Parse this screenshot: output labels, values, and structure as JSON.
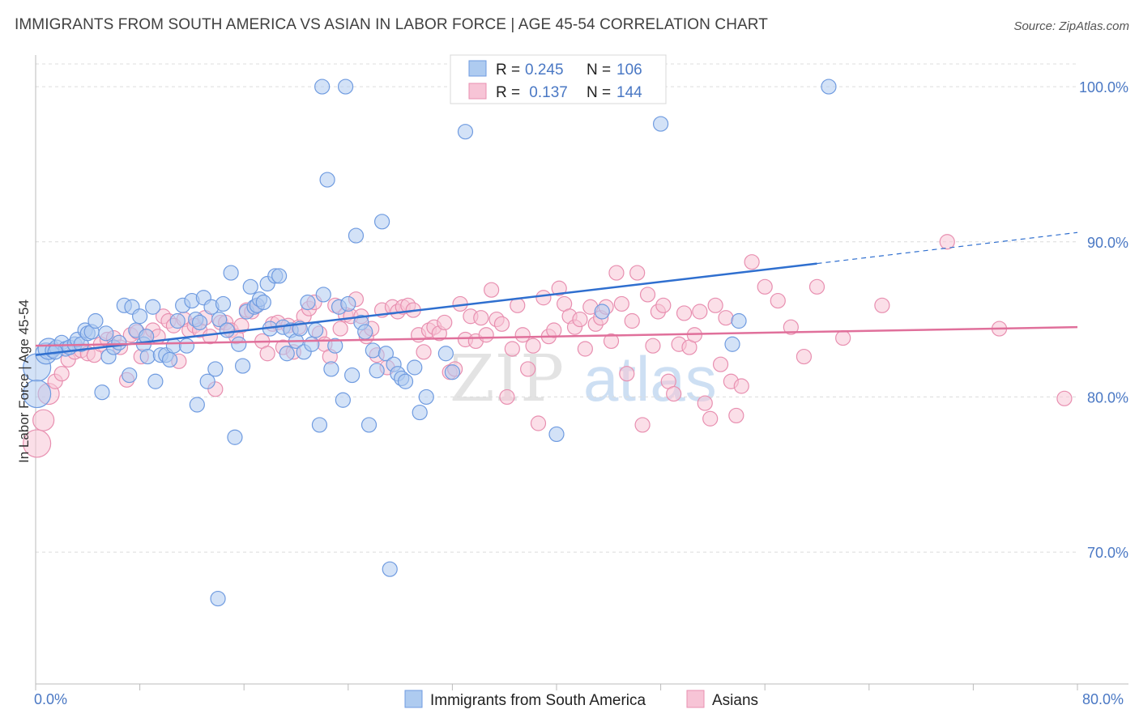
{
  "header": {
    "title": "IMMIGRANTS FROM SOUTH AMERICA VS ASIAN IN LABOR FORCE | AGE 45-54 CORRELATION CHART",
    "source": "Source: ZipAtlas.com"
  },
  "watermark": {
    "part1": "ZIP",
    "part2": "atlas"
  },
  "legend": {
    "rows": [
      {
        "r_label": "R =",
        "r_value": "0.245",
        "n_label": "N =",
        "n_value": "106"
      },
      {
        "r_label": "R =",
        "r_value": " 0.137",
        "n_label": "N =",
        "n_value": "144"
      }
    ]
  },
  "bottom_legend": [
    "Immigrants from South America",
    "Asians"
  ],
  "chart_data": {
    "type": "scatter",
    "title": "IMMIGRANTS FROM SOUTH AMERICA VS ASIAN IN LABOR FORCE | AGE 45-54 CORRELATION CHART",
    "ylabel": "In Labor Force | Age 45-54",
    "xlabel": "",
    "xlim": [
      0,
      80
    ],
    "ylim": [
      61.5,
      103.5
    ],
    "x_tick_labels": [
      "0.0%",
      "80.0%"
    ],
    "y_ticks": [
      {
        "value": 100,
        "label": "100.0%"
      },
      {
        "value": 90,
        "label": "90.0%"
      },
      {
        "value": 80,
        "label": "80.0%"
      },
      {
        "value": 70,
        "label": "70.0%"
      }
    ],
    "grid": "horizontal dashed",
    "colors": {
      "blue_fill": "#aecbf0",
      "blue_stroke": "#6f9be0",
      "blue_line": "#2f6fcf",
      "pink_fill": "#f7c4d6",
      "pink_stroke": "#e88fb0",
      "pink_line": "#e0709b"
    },
    "series": [
      {
        "name": "Immigrants from South America",
        "R": 0.245,
        "N": 106,
        "trend": {
          "x0": 0,
          "y0": 82.7,
          "x1": 60,
          "y1": 88.6,
          "dash_to_x": 80,
          "dash_to_y": 90.6
        },
        "points": [
          [
            0.1,
            81.9
          ],
          [
            0.1,
            80.2
          ],
          [
            0.8,
            82.8
          ],
          [
            1.0,
            83.1
          ],
          [
            1.3,
            83.0
          ],
          [
            1.6,
            83.2
          ],
          [
            2.0,
            83.5
          ],
          [
            2.3,
            83.1
          ],
          [
            2.6,
            83.2
          ],
          [
            3.0,
            83.4
          ],
          [
            3.2,
            83.7
          ],
          [
            3.5,
            83.4
          ],
          [
            3.8,
            84.3
          ],
          [
            4.0,
            84.1
          ],
          [
            4.3,
            84.2
          ],
          [
            4.6,
            84.9
          ],
          [
            5.1,
            80.3
          ],
          [
            5.4,
            84.1
          ],
          [
            5.6,
            82.6
          ],
          [
            6.0,
            83.2
          ],
          [
            6.4,
            83.5
          ],
          [
            6.8,
            85.9
          ],
          [
            7.2,
            81.4
          ],
          [
            7.4,
            85.8
          ],
          [
            7.7,
            84.3
          ],
          [
            8.0,
            85.2
          ],
          [
            8.3,
            83.4
          ],
          [
            8.6,
            82.6
          ],
          [
            9.0,
            85.8
          ],
          [
            9.2,
            81.0
          ],
          [
            9.6,
            82.7
          ],
          [
            10.0,
            82.7
          ],
          [
            10.3,
            82.4
          ],
          [
            10.6,
            83.3
          ],
          [
            10.9,
            84.9
          ],
          [
            11.3,
            85.9
          ],
          [
            11.6,
            83.3
          ],
          [
            12.0,
            86.2
          ],
          [
            12.3,
            85.0
          ],
          [
            12.6,
            84.8
          ],
          [
            12.9,
            86.4
          ],
          [
            13.2,
            81.0
          ],
          [
            13.5,
            85.8
          ],
          [
            13.8,
            81.8
          ],
          [
            14.1,
            85.0
          ],
          [
            14.4,
            86.0
          ],
          [
            14.7,
            84.3
          ],
          [
            15.0,
            88.0
          ],
          [
            15.3,
            77.4
          ],
          [
            15.6,
            83.4
          ],
          [
            15.9,
            82.0
          ],
          [
            16.2,
            85.5
          ],
          [
            16.5,
            87.1
          ],
          [
            16.8,
            85.8
          ],
          [
            17.0,
            85.9
          ],
          [
            17.2,
            86.3
          ],
          [
            17.5,
            86.1
          ],
          [
            17.8,
            87.3
          ],
          [
            18.0,
            84.4
          ],
          [
            18.4,
            87.8
          ],
          [
            18.7,
            87.8
          ],
          [
            19.0,
            84.5
          ],
          [
            19.3,
            82.8
          ],
          [
            19.6,
            84.3
          ],
          [
            20.0,
            83.6
          ],
          [
            20.3,
            84.4
          ],
          [
            20.6,
            82.9
          ],
          [
            20.9,
            86.1
          ],
          [
            21.2,
            83.4
          ],
          [
            21.5,
            84.3
          ],
          [
            21.8,
            78.2
          ],
          [
            22.1,
            86.6
          ],
          [
            22.4,
            94.0
          ],
          [
            22.7,
            81.8
          ],
          [
            23.0,
            83.3
          ],
          [
            23.3,
            85.8
          ],
          [
            23.6,
            79.8
          ],
          [
            24.0,
            86.0
          ],
          [
            24.3,
            81.4
          ],
          [
            24.6,
            90.4
          ],
          [
            25.0,
            84.8
          ],
          [
            25.3,
            84.2
          ],
          [
            25.6,
            78.2
          ],
          [
            25.9,
            83.0
          ],
          [
            26.2,
            81.7
          ],
          [
            26.6,
            91.3
          ],
          [
            26.9,
            82.8
          ],
          [
            27.2,
            68.9
          ],
          [
            27.5,
            82.1
          ],
          [
            27.8,
            81.5
          ],
          [
            28.1,
            81.2
          ],
          [
            28.4,
            81.0
          ],
          [
            29.1,
            81.9
          ],
          [
            29.5,
            79.0
          ],
          [
            30.0,
            80.0
          ],
          [
            31.5,
            82.8
          ],
          [
            32.0,
            81.6
          ],
          [
            33.0,
            97.1
          ],
          [
            40.0,
            77.6
          ],
          [
            43.5,
            85.5
          ],
          [
            53.5,
            83.4
          ],
          [
            54.0,
            84.9
          ],
          [
            60.9,
            100.0
          ],
          [
            22.0,
            100.0
          ],
          [
            23.8,
            100.0
          ],
          [
            48.0,
            97.6
          ],
          [
            14.0,
            67.0
          ],
          [
            12.4,
            79.5
          ],
          [
            8.5,
            83.9
          ],
          [
            1.5,
            82.9
          ]
        ]
      },
      {
        "name": "Asians",
        "R": 0.137,
        "N": 144,
        "trend": {
          "x0": 0,
          "y0": 83.3,
          "x1": 80,
          "y1": 84.5
        },
        "points": [
          [
            0.1,
            77.0
          ],
          [
            0.6,
            78.5
          ],
          [
            1.0,
            80.2
          ],
          [
            1.5,
            81.0
          ],
          [
            2.0,
            81.5
          ],
          [
            2.5,
            82.4
          ],
          [
            3.0,
            82.9
          ],
          [
            3.5,
            83.0
          ],
          [
            4.0,
            82.8
          ],
          [
            4.5,
            82.7
          ],
          [
            5.0,
            83.4
          ],
          [
            5.5,
            83.7
          ],
          [
            6.0,
            83.8
          ],
          [
            6.5,
            83.2
          ],
          [
            7.0,
            81.1
          ],
          [
            7.3,
            84.0
          ],
          [
            7.8,
            84.2
          ],
          [
            8.1,
            82.6
          ],
          [
            8.5,
            83.9
          ],
          [
            9.0,
            84.3
          ],
          [
            9.4,
            83.9
          ],
          [
            9.8,
            85.2
          ],
          [
            10.2,
            84.9
          ],
          [
            10.6,
            84.6
          ],
          [
            11.0,
            82.3
          ],
          [
            11.4,
            85.0
          ],
          [
            11.8,
            84.3
          ],
          [
            12.2,
            84.6
          ],
          [
            12.6,
            84.3
          ],
          [
            13.0,
            85.1
          ],
          [
            13.4,
            83.9
          ],
          [
            13.8,
            80.5
          ],
          [
            14.2,
            84.8
          ],
          [
            14.6,
            84.8
          ],
          [
            15.0,
            84.3
          ],
          [
            15.4,
            83.9
          ],
          [
            15.8,
            84.6
          ],
          [
            16.2,
            85.6
          ],
          [
            16.6,
            85.5
          ],
          [
            17.0,
            85.9
          ],
          [
            17.4,
            83.6
          ],
          [
            17.8,
            82.8
          ],
          [
            18.2,
            84.7
          ],
          [
            18.6,
            84.8
          ],
          [
            19.0,
            83.2
          ],
          [
            19.4,
            84.6
          ],
          [
            19.8,
            82.9
          ],
          [
            20.2,
            84.5
          ],
          [
            20.6,
            85.2
          ],
          [
            21.0,
            85.7
          ],
          [
            21.4,
            86.1
          ],
          [
            21.8,
            84.1
          ],
          [
            22.2,
            83.4
          ],
          [
            22.6,
            82.6
          ],
          [
            23.0,
            85.9
          ],
          [
            23.4,
            84.4
          ],
          [
            23.8,
            85.3
          ],
          [
            24.2,
            85.2
          ],
          [
            24.6,
            86.3
          ],
          [
            25.0,
            85.2
          ],
          [
            25.4,
            83.9
          ],
          [
            25.8,
            84.4
          ],
          [
            26.2,
            82.7
          ],
          [
            26.6,
            85.6
          ],
          [
            27.0,
            81.9
          ],
          [
            27.4,
            85.8
          ],
          [
            27.8,
            85.5
          ],
          [
            28.2,
            85.8
          ],
          [
            28.6,
            85.9
          ],
          [
            29.0,
            85.6
          ],
          [
            29.4,
            84.0
          ],
          [
            29.8,
            82.9
          ],
          [
            30.2,
            84.3
          ],
          [
            30.6,
            84.5
          ],
          [
            31.0,
            84.1
          ],
          [
            31.4,
            84.8
          ],
          [
            31.8,
            81.6
          ],
          [
            32.2,
            81.8
          ],
          [
            32.6,
            86.0
          ],
          [
            33.0,
            83.7
          ],
          [
            33.4,
            85.2
          ],
          [
            33.8,
            83.6
          ],
          [
            34.2,
            85.1
          ],
          [
            34.6,
            84.0
          ],
          [
            35.0,
            86.9
          ],
          [
            35.4,
            85.0
          ],
          [
            35.8,
            84.7
          ],
          [
            36.2,
            80.0
          ],
          [
            36.6,
            83.1
          ],
          [
            37.0,
            85.9
          ],
          [
            37.4,
            84.0
          ],
          [
            37.8,
            81.8
          ],
          [
            38.2,
            83.3
          ],
          [
            38.6,
            78.3
          ],
          [
            39.0,
            86.4
          ],
          [
            39.4,
            83.9
          ],
          [
            39.8,
            84.3
          ],
          [
            40.2,
            87.0
          ],
          [
            40.6,
            86.0
          ],
          [
            41.0,
            85.2
          ],
          [
            41.4,
            84.5
          ],
          [
            41.8,
            85.0
          ],
          [
            42.2,
            83.1
          ],
          [
            42.6,
            85.8
          ],
          [
            43.0,
            84.7
          ],
          [
            43.4,
            85.1
          ],
          [
            43.8,
            85.8
          ],
          [
            44.2,
            83.6
          ],
          [
            44.6,
            88.0
          ],
          [
            45.0,
            86.0
          ],
          [
            45.4,
            81.5
          ],
          [
            45.8,
            84.9
          ],
          [
            46.2,
            88.0
          ],
          [
            46.6,
            78.2
          ],
          [
            47.0,
            86.6
          ],
          [
            47.4,
            83.3
          ],
          [
            47.8,
            85.5
          ],
          [
            48.2,
            85.9
          ],
          [
            48.6,
            81.0
          ],
          [
            49.0,
            80.2
          ],
          [
            49.4,
            83.4
          ],
          [
            49.8,
            85.4
          ],
          [
            50.2,
            83.2
          ],
          [
            50.6,
            84.0
          ],
          [
            51.0,
            85.5
          ],
          [
            51.4,
            79.6
          ],
          [
            51.8,
            78.6
          ],
          [
            52.2,
            85.9
          ],
          [
            52.6,
            82.1
          ],
          [
            53.0,
            85.1
          ],
          [
            53.4,
            81.0
          ],
          [
            53.8,
            78.8
          ],
          [
            54.2,
            80.7
          ],
          [
            55.0,
            88.7
          ],
          [
            56.0,
            87.1
          ],
          [
            57.0,
            86.2
          ],
          [
            58.0,
            84.5
          ],
          [
            59.0,
            82.6
          ],
          [
            60.0,
            87.1
          ],
          [
            62.0,
            83.8
          ],
          [
            65.0,
            85.9
          ],
          [
            70.0,
            90.0
          ],
          [
            74.0,
            84.4
          ],
          [
            79.0,
            79.9
          ]
        ]
      }
    ]
  }
}
